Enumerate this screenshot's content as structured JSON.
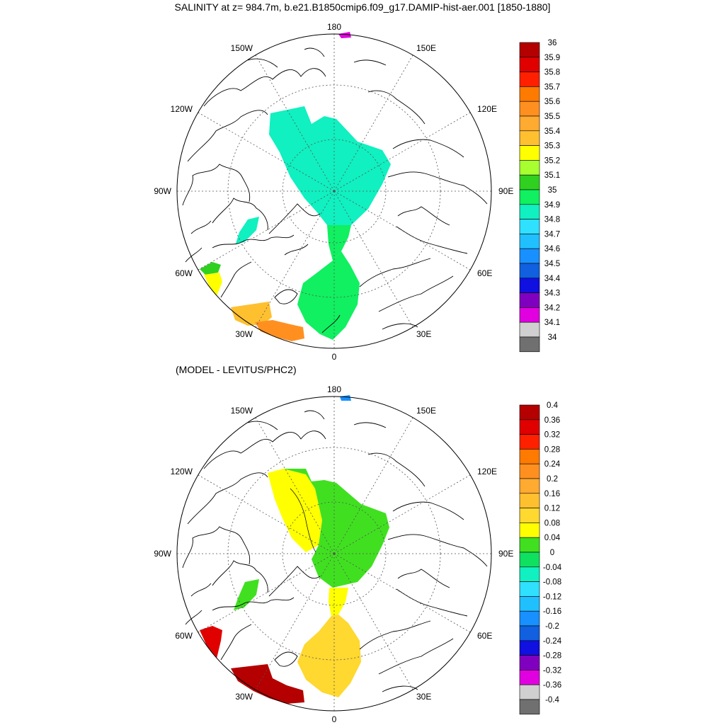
{
  "figure": {
    "title": "SALINITY at z= 984.7m, b.e21.B1850cmip6.f09_g17.DAMIP-hist-aer.001 [1850-1880]",
    "subtitle": "(MODEL - LEVITUS/PHC2)"
  },
  "map_labels": {
    "top": "180",
    "bottom": "0",
    "left": "90W",
    "right": "90E",
    "upper_left_1": "150W",
    "upper_left_2": "120W",
    "lower_left_1": "60W",
    "lower_left_2": "30W",
    "upper_right_1": "150E",
    "upper_right_2": "120E",
    "lower_right_1": "60E",
    "lower_right_2": "30E"
  },
  "colors": {
    "land_outline": "#000000",
    "grid": "#555555"
  },
  "colorbar_top": {
    "labels": [
      "36",
      "35.9",
      "35.8",
      "35.7",
      "35.6",
      "35.5",
      "35.4",
      "35.3",
      "35.2",
      "35.1",
      "35",
      "34.9",
      "34.8",
      "34.7",
      "34.6",
      "34.5",
      "34.4",
      "34.3",
      "34.2",
      "34.1",
      "34"
    ],
    "colors": [
      "#b40000",
      "#e00000",
      "#ff2000",
      "#ff7a00",
      "#ff9020",
      "#ffaa30",
      "#ffc030",
      "#ffff00",
      "#a8ff30",
      "#30d020",
      "#10f060",
      "#10f0c0",
      "#30e0ff",
      "#20c0ff",
      "#1890ff",
      "#1060e0",
      "#1010e0",
      "#8000c0",
      "#e000e0",
      "#d0d0d0",
      "#707070"
    ]
  },
  "colorbar_bottom": {
    "labels": [
      "0.4",
      "0.36",
      "0.32",
      "0.28",
      "0.24",
      "0.2",
      "0.16",
      "0.12",
      "0.08",
      "0.04",
      "0",
      "-0.04",
      "-0.08",
      "-0.12",
      "-0.16",
      "-0.2",
      "-0.24",
      "-0.28",
      "-0.32",
      "-0.36",
      "-0.4"
    ],
    "colors": [
      "#b40000",
      "#e00000",
      "#ff2000",
      "#ff7a00",
      "#ff9020",
      "#ffaa30",
      "#ffc030",
      "#ffd830",
      "#ffff00",
      "#40e020",
      "#10e060",
      "#10f0c0",
      "#30e0ff",
      "#20c0ff",
      "#1890ff",
      "#1060e0",
      "#1010e0",
      "#8000c0",
      "#e000e0",
      "#d0d0d0",
      "#707070"
    ]
  },
  "top_map_fields": {
    "arctic_basin": "#10f0c0",
    "fram_strait": "#10f060",
    "nordic_seas": "#10f060",
    "baffin_patch": "#10f0c0",
    "labrador_green": "#30d020",
    "labrador_yellow": "#ffff00",
    "north_atlantic_a": "#ffc030",
    "north_atlantic_b": "#ff9020",
    "bering_patch": "#e000e0"
  },
  "bottom_map_fields": {
    "canada_basin_yellow": "#ffff00",
    "eurasian_basin_green": "#40e020",
    "fram_strait_yellow": "#ffff00",
    "nordic_seas": "#ffd830",
    "baffin_patch": "#40e020",
    "labrador": "#e00000",
    "north_atlantic": "#b40000",
    "bering_patch": "#1890ff"
  }
}
